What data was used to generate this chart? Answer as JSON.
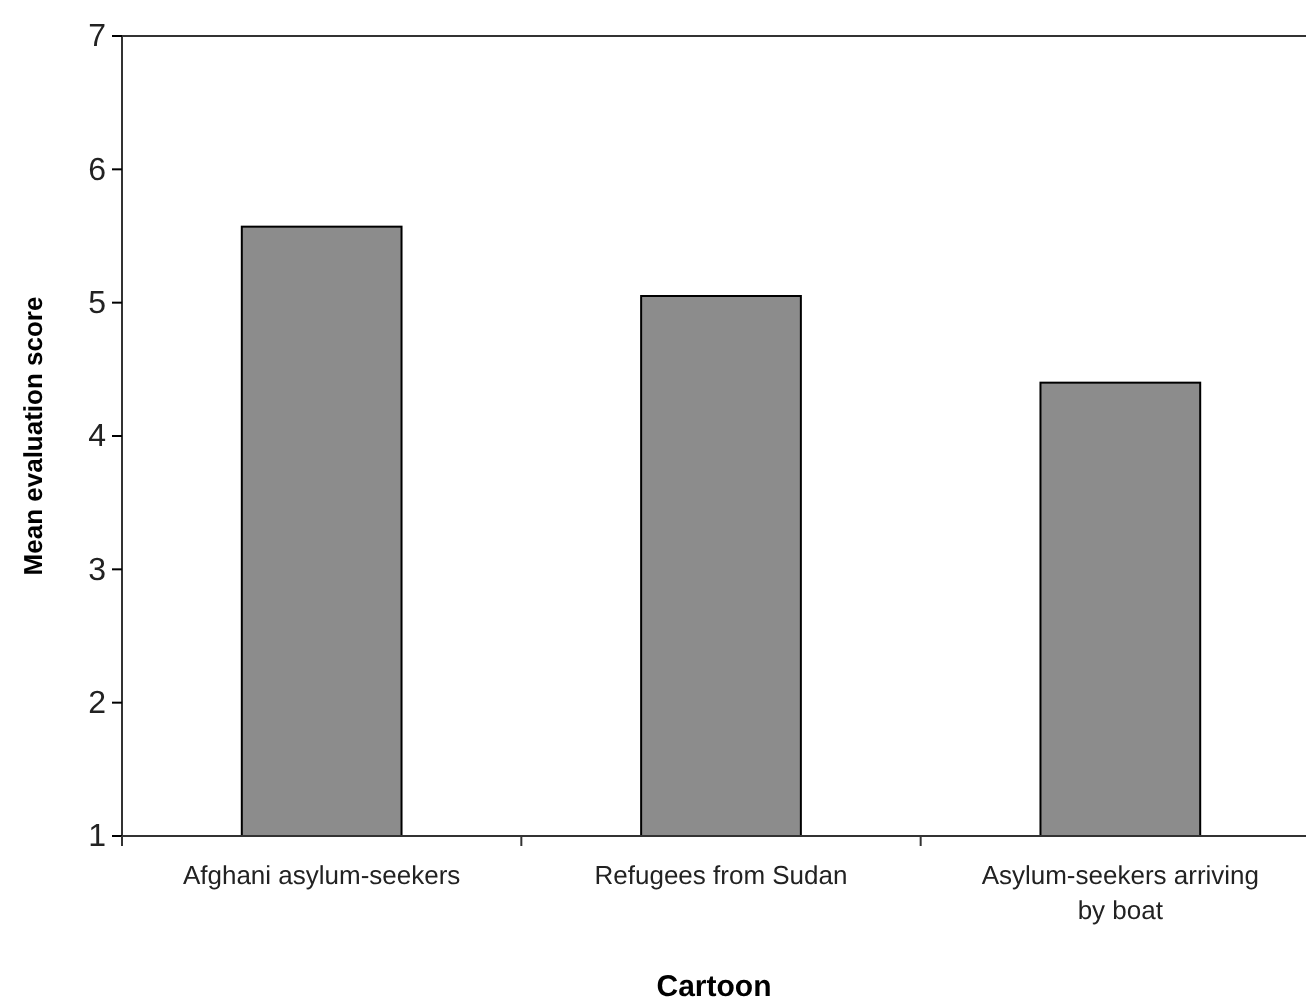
{
  "chart_data": {
    "type": "bar",
    "xlabel": "Cartoon",
    "ylabel": "Mean evaluation score",
    "categories": [
      "Afghani asylum-seekers",
      "Refugees from Sudan",
      "Asylum-seekers arriving by boat"
    ],
    "values": [
      5.57,
      5.05,
      4.4
    ],
    "color": "#8c8c8c",
    "ylim": [
      1,
      7
    ],
    "yticks": [
      1,
      2,
      3,
      4,
      5,
      6,
      7
    ],
    "grid": false
  }
}
